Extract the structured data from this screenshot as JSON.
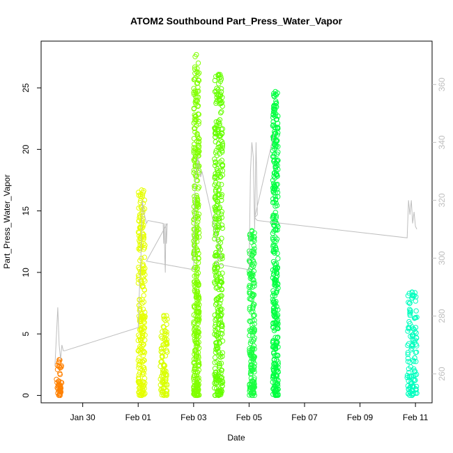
{
  "chart_data": {
    "type": "scatter",
    "title": "ATOM2 Southbound Part_Press_Water_Vapor",
    "xlabel": "Date",
    "ylabel": "Part_Press_Water_Vapor",
    "x_tick_labels": [
      "Jan 30",
      "Feb 01",
      "Feb 03",
      "Feb 05",
      "Feb 07",
      "Feb 09",
      "Feb 11"
    ],
    "x_tick_days": [
      1,
      3,
      5,
      7,
      9,
      11,
      13
    ],
    "x_range_days": [
      -0.5,
      13.6
    ],
    "ylim": [
      -0.6,
      28.8
    ],
    "y_ticks": [
      0,
      5,
      10,
      15,
      20,
      25
    ],
    "y_tick_labels": [
      "0",
      "5",
      "10",
      "15",
      "20",
      "25"
    ],
    "y2lim": [
      250,
      375
    ],
    "y2_ticks": [
      260,
      280,
      300,
      320,
      340,
      360
    ],
    "y2_tick_labels": [
      "260",
      "280",
      "300",
      "320",
      "340",
      "360"
    ],
    "grid": false,
    "legend": "none",
    "marker": "open-circle",
    "series": [
      {
        "day_start": 0.05,
        "day_end": 0.25,
        "ymin": 0.0,
        "ymax": 2.9,
        "color": "#ff8000"
      },
      {
        "day_start": 3.0,
        "day_end": 3.25,
        "ymin": 0.0,
        "ymax": 16.7,
        "color": "#e5ff00"
      },
      {
        "day_start": 3.8,
        "day_end": 4.05,
        "ymin": 0.0,
        "ymax": 6.5,
        "color": "#d9ff00"
      },
      {
        "day_start": 5.0,
        "day_end": 5.2,
        "ymin": 0.0,
        "ymax": 27.7,
        "color": "#80ff00"
      },
      {
        "day_start": 5.75,
        "day_end": 6.05,
        "ymin": 0.0,
        "ymax": 26.1,
        "color": "#66ff00"
      },
      {
        "day_start": 7.0,
        "day_end": 7.2,
        "ymin": 0.0,
        "ymax": 13.4,
        "color": "#1aff40"
      },
      {
        "day_start": 7.85,
        "day_end": 8.05,
        "ymin": 0.0,
        "ymax": 24.7,
        "color": "#00ff40"
      },
      {
        "day_start": 12.7,
        "day_end": 13.05,
        "ymin": 0.0,
        "ymax": 8.4,
        "color": "#00ffbf"
      }
    ],
    "secondary_line": {
      "color": "#bebebe",
      "x_days": [
        0.0,
        0.1,
        0.15,
        0.2,
        0.25,
        0.3,
        0.35,
        3.0,
        3.05,
        3.1,
        3.15,
        3.2,
        3.25,
        3.3,
        3.35,
        3.9,
        3.92,
        3.94,
        3.96,
        3.98,
        4.0,
        4.02,
        4.05,
        3.3,
        5.0,
        5.05,
        5.1,
        5.15,
        5.2,
        5.25,
        5.3,
        6.0,
        5.9,
        5.8,
        7.0,
        7.05,
        7.1,
        7.15,
        7.2,
        7.25,
        7.3,
        7.2,
        7.9,
        7.2,
        7.3,
        12.7,
        12.75,
        12.8,
        12.85,
        12.9,
        12.95,
        13.0,
        13.05
      ],
      "y_values": [
        263,
        283,
        270,
        265,
        270,
        268,
        268,
        276,
        290,
        300,
        320,
        316,
        314,
        312,
        313,
        312,
        305,
        312,
        300,
        295,
        312,
        305,
        312,
        299,
        296,
        325,
        330,
        335,
        331,
        328,
        330,
        300,
        300,
        298,
        296,
        330,
        340,
        335,
        310,
        340,
        315,
        314,
        343,
        314,
        313,
        307,
        320,
        315,
        320,
        312,
        316,
        311,
        310
      ]
    }
  }
}
